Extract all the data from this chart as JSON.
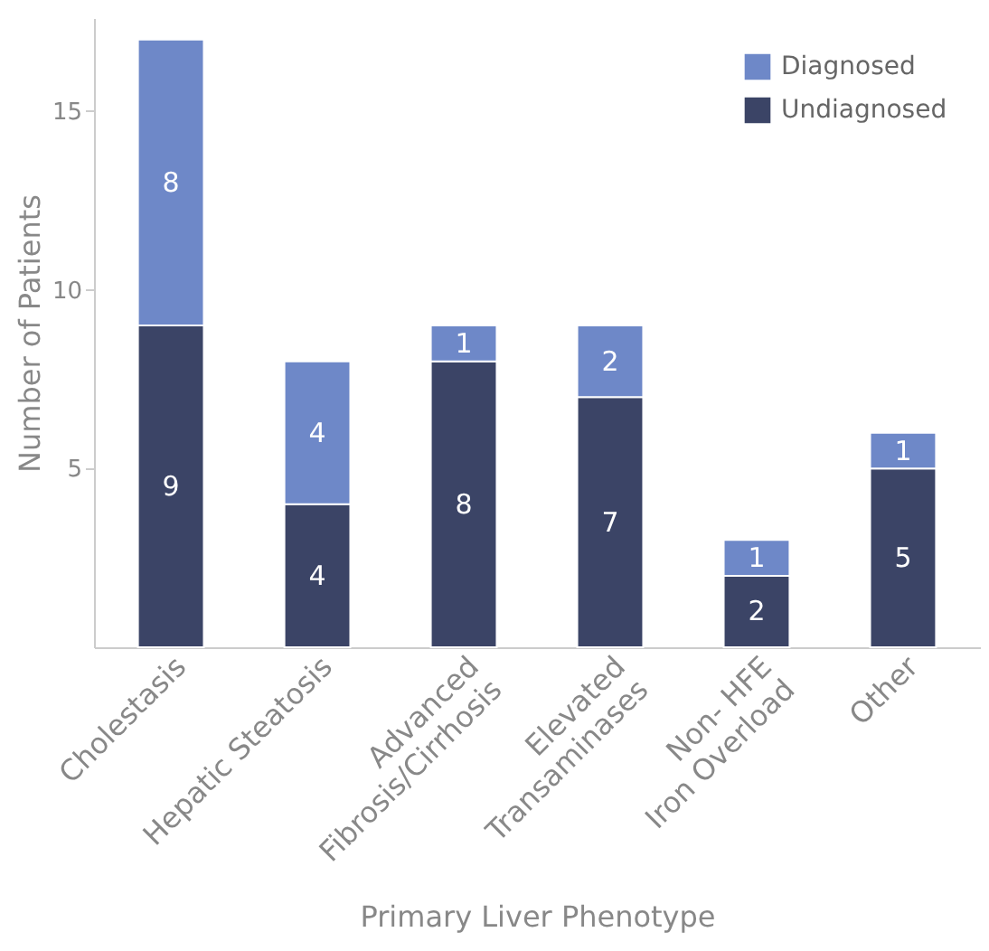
{
  "chart_data": {
    "type": "bar",
    "stacked": true,
    "xlabel": "Primary Liver Phenotype",
    "ylabel": "Number of Patients",
    "categories": [
      "Cholestasis",
      "Hepatic Steatosis",
      "Advanced\nFibrosis/Cirrhosis",
      "Elevated\nTransaminases",
      "Non- HFE\nIron Overload",
      "Other"
    ],
    "series": [
      {
        "name": "Undiagnosed",
        "color": "#3b4466",
        "values": [
          9,
          4,
          8,
          7,
          2,
          5
        ]
      },
      {
        "name": "Diagnosed",
        "color": "#6e88c8",
        "values": [
          8,
          4,
          1,
          2,
          1,
          1
        ]
      }
    ],
    "ylim": [
      0,
      17.6
    ],
    "yticks": [
      5,
      10,
      15
    ],
    "grid": false,
    "legend": "top right",
    "data_labels": true
  }
}
